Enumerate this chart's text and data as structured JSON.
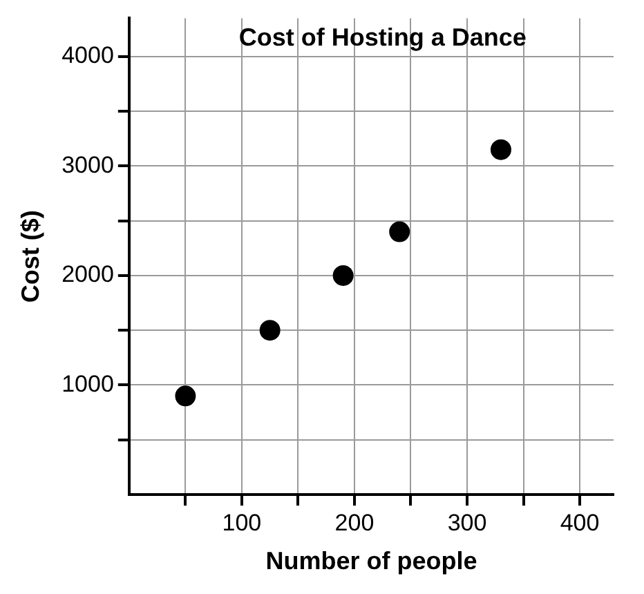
{
  "chart_data": {
    "type": "scatter",
    "title": "Cost of Hosting a Dance",
    "xlabel": "Number of people",
    "ylabel": "Cost ($)",
    "x": [
      50,
      125,
      190,
      240,
      330
    ],
    "series": [
      {
        "color": "#000000",
        "values": [
          900,
          1500,
          2000,
          2400,
          3150
        ]
      }
    ],
    "xlim": [
      0,
      430
    ],
    "ylim": [
      0,
      4350
    ],
    "xticks": [
      {
        "value": 50,
        "label": null
      },
      100,
      {
        "value": 150,
        "label": null
      },
      200,
      {
        "value": 250,
        "label": null
      },
      300,
      {
        "value": 350,
        "label": null
      },
      400
    ],
    "yticks": [
      {
        "value": 500,
        "label": null
      },
      1000,
      {
        "value": 1500,
        "label": null
      },
      2000,
      {
        "value": 2500,
        "label": null
      },
      3000,
      {
        "value": 3500,
        "label": null
      },
      4000
    ],
    "grid": true,
    "marker": "circle",
    "legend": false
  }
}
